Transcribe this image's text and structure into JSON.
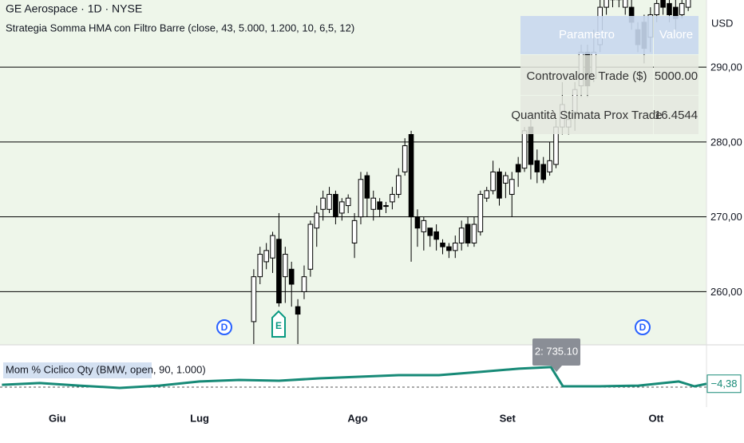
{
  "chart_data": [
    {
      "type": "candlestick",
      "title": "GE Aerospace · 1D · NYSE",
      "subtitle": "Strategia Somma HMA con Filtro Barre (close, 43, 5.000, 1.200, 10, 6,5, 12)",
      "x": [
        0,
        1,
        2,
        3,
        4,
        5,
        6,
        7,
        8,
        9,
        10,
        11,
        12,
        13,
        14,
        15,
        16,
        17,
        18,
        19,
        20,
        21,
        22,
        23,
        24,
        25,
        26,
        27,
        28,
        29,
        30,
        31,
        32,
        33,
        34,
        35,
        36,
        37,
        38,
        39,
        40,
        41,
        42,
        43,
        44,
        45,
        46,
        47,
        48,
        49,
        50,
        51,
        52,
        53,
        54,
        55,
        56,
        57,
        58,
        59,
        60,
        61,
        62,
        63,
        64,
        65,
        66,
        67,
        68,
        69
      ],
      "open": [
        256,
        262,
        264,
        264.5,
        267,
        262,
        263,
        258,
        260,
        263,
        268.5,
        271,
        271,
        273,
        270.5,
        271.5,
        266.5,
        270,
        275.5,
        271,
        272,
        271.5,
        272,
        273,
        276,
        281,
        270,
        268,
        268.5,
        268,
        266.5,
        266,
        265.5,
        266.5,
        269,
        266.5,
        268,
        272.5,
        273.5,
        276,
        274.5,
        273,
        277,
        276.5,
        282,
        277.5,
        277,
        276,
        277,
        282,
        282,
        284,
        287.5,
        292,
        288.5,
        293,
        298,
        299,
        300,
        298,
        298,
        295,
        296,
        294,
        297,
        299,
        298.5,
        298,
        297,
        298
      ],
      "high": [
        263,
        266,
        266.5,
        268,
        270.5,
        266,
        264,
        259,
        263.5,
        269.5,
        271.5,
        273.5,
        274,
        273.5,
        272.5,
        273,
        270.5,
        276,
        276,
        273.5,
        272.5,
        272,
        274,
        276.5,
        280.5,
        281.5,
        271,
        270,
        268.5,
        269,
        267,
        266.5,
        267.5,
        269.5,
        270,
        270,
        273.5,
        274,
        277.5,
        276.5,
        276,
        276,
        278,
        282,
        283,
        279,
        278,
        280,
        283,
        288,
        284,
        288,
        293,
        293,
        295,
        299,
        300,
        301,
        301,
        301,
        299,
        296,
        297,
        298,
        299.5,
        300.5,
        299.5,
        299,
        299.5,
        300
      ],
      "low": [
        253,
        261,
        263,
        262.5,
        258,
        258.5,
        258,
        253,
        259,
        262,
        266,
        269.5,
        270.5,
        269,
        269.5,
        270.5,
        264.5,
        269,
        270,
        269.5,
        270,
        270.5,
        271,
        272.5,
        275.5,
        264,
        266,
        265.5,
        266,
        265.5,
        265,
        264.5,
        264.5,
        265.5,
        266,
        266,
        267.5,
        272,
        273,
        271.5,
        272.5,
        270,
        274,
        276,
        275,
        274.5,
        274.5,
        275.5,
        276.5,
        281,
        281,
        281.5,
        286,
        286,
        288,
        292,
        297,
        298,
        298,
        297,
        295,
        292,
        290.5,
        292,
        296,
        297,
        296,
        295,
        296.5,
        297.5
      ],
      "close": [
        262,
        265,
        265.5,
        267.5,
        258.5,
        265,
        261,
        257,
        262,
        269,
        270.5,
        272.5,
        273,
        270,
        272,
        272.5,
        269.5,
        275,
        272.5,
        272.5,
        271,
        271.5,
        273,
        275.5,
        279.5,
        270,
        268.5,
        269.5,
        267.5,
        267,
        266,
        265.5,
        266.5,
        268.5,
        266.5,
        269,
        273,
        273.5,
        276,
        272.5,
        275.5,
        275,
        276,
        281.5,
        277,
        276,
        275,
        277.5,
        282,
        285,
        283,
        287,
        292,
        287.5,
        292,
        298,
        299.5,
        300.5,
        299,
        300,
        296,
        293,
        292.5,
        297,
        298.5,
        298,
        297,
        296.5,
        298.5,
        299.2
      ],
      "up_color": "#ffffff",
      "down_color": "#000000",
      "edge_color": "#000000",
      "xlim": [
        -40.3,
        71.9
      ],
      "xticks": [
        {
          "value": -31.2,
          "label": "Giu"
        },
        {
          "value": -8.6,
          "label": "Lug"
        },
        {
          "value": 16.5,
          "label": "Ago"
        },
        {
          "value": 40.3,
          "label": "Set"
        },
        {
          "value": 63.9,
          "label": "Ott"
        }
      ],
      "ylim": [
        252.9,
        298.97
      ],
      "yticks": [
        {
          "value": 260,
          "label": "260,00"
        },
        {
          "value": 270,
          "label": "270,00"
        },
        {
          "value": 280,
          "label": "280,00"
        },
        {
          "value": 290,
          "label": "290,00"
        }
      ],
      "y_unit": "USD",
      "grid": true,
      "background": "#eef6ea"
    },
    {
      "type": "line",
      "title": "Mom % Ciclico Qty (BMW, open, 90, 1.000)",
      "x": [
        -40,
        -34,
        -27.7,
        -21.3,
        -15,
        -8.6,
        -2.3,
        4,
        10.4,
        16.7,
        23,
        29.4,
        35.8,
        42.1,
        47.2,
        49.1,
        54.8,
        61.1,
        67.5,
        70,
        71.9
      ],
      "values": [
        -5.3,
        -3.8,
        -6.0,
        -8.1,
        -6.0,
        -2.4,
        -1.0,
        -1.7,
        0.4,
        1.8,
        3.2,
        3.2,
        6.0,
        8.9,
        10.3,
        -6.7,
        -6.7,
        -6.0,
        -2.4,
        -6.7,
        -4.38
      ],
      "value_labels": [
        null,
        null,
        null,
        null,
        null,
        null,
        null,
        null,
        null,
        null,
        null,
        null,
        null,
        null,
        null,
        null,
        null,
        null,
        null,
        null,
        "−4,38"
      ],
      "color": "#178a77",
      "xlim": [
        -40.3,
        71.9
      ],
      "ylim": [
        -25,
        30
      ],
      "annotation": "2: 735.10"
    }
  ],
  "table": {
    "header": [
      "Parametro",
      "Valore"
    ],
    "rows": [
      [
        "Controvalore Trade ($)",
        "5000.00"
      ],
      [
        "Quantità Stimata Prox Trade",
        "16.4544"
      ]
    ]
  },
  "events": [
    {
      "label": "D"
    },
    {
      "label": "E"
    },
    {
      "label": "D"
    }
  ]
}
